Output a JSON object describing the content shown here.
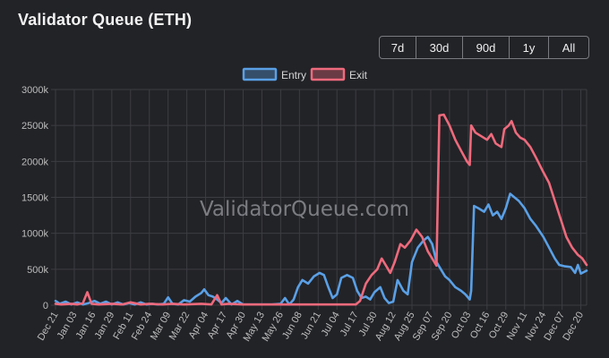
{
  "title": "Validator Queue (ETH)",
  "range_buttons": [
    "7d",
    "30d",
    "90d",
    "1y",
    "All"
  ],
  "watermark": "ValidatorQueue.com",
  "colors": {
    "entry": "#5aa0e6",
    "exit": "#ee6a7c",
    "grid": "#3c3d42",
    "tick_text": "#bdbdbd"
  },
  "chart_data": {
    "type": "line",
    "title": "",
    "xlabel": "",
    "ylabel": "",
    "legend_position": "top",
    "grid": true,
    "ylim": [
      0,
      3000000
    ],
    "y_ticks": [
      0,
      500000,
      1000000,
      1500000,
      2000000,
      2500000,
      3000000
    ],
    "y_tick_labels": [
      "0",
      "500k",
      "1000k",
      "1500k",
      "2000k",
      "2500k",
      "3000k"
    ],
    "x_tick_labels": [
      "Dec 21",
      "Jan 03",
      "Jan 16",
      "Jan 29",
      "Feb 11",
      "Feb 24",
      "Mar 09",
      "Mar 22",
      "Apr 04",
      "Apr 17",
      "Apr 30",
      "May 13",
      "May 26",
      "Jun 08",
      "Jun 21",
      "Jul 04",
      "Jul 17",
      "Jul 30",
      "Aug 12",
      "Aug 25",
      "Sep 07",
      "Sep 20",
      "Oct 03",
      "Oct 16",
      "Oct 29",
      "Nov 11",
      "Nov 24",
      "Dec 07",
      "Dec 20"
    ],
    "x_start": "Dec 21",
    "x_end": "Dec 24",
    "series": [
      {
        "name": "Entry",
        "points": [
          [
            "Dec 21",
            60000
          ],
          [
            "Dec 24",
            20000
          ],
          [
            "Dec 28",
            50000
          ],
          [
            "Jan 01",
            10000
          ],
          [
            "Jan 05",
            40000
          ],
          [
            "Jan 09",
            10000
          ],
          [
            "Jan 13",
            30000
          ],
          [
            "Jan 17",
            60000
          ],
          [
            "Jan 21",
            20000
          ],
          [
            "Jan 25",
            50000
          ],
          [
            "Jan 29",
            10000
          ],
          [
            "Feb 02",
            40000
          ],
          [
            "Feb 06",
            10000
          ],
          [
            "Feb 10",
            30000
          ],
          [
            "Feb 14",
            10000
          ],
          [
            "Feb 18",
            40000
          ],
          [
            "Feb 22",
            10000
          ],
          [
            "Feb 26",
            20000
          ],
          [
            "Mar 02",
            10000
          ],
          [
            "Mar 06",
            20000
          ],
          [
            "Mar 09",
            110000
          ],
          [
            "Mar 12",
            20000
          ],
          [
            "Mar 16",
            10000
          ],
          [
            "Mar 20",
            70000
          ],
          [
            "Mar 24",
            50000
          ],
          [
            "Mar 28",
            120000
          ],
          [
            "Apr 01",
            170000
          ],
          [
            "Apr 03",
            220000
          ],
          [
            "Apr 06",
            140000
          ],
          [
            "Apr 09",
            120000
          ],
          [
            "Apr 12",
            80000
          ],
          [
            "Apr 15",
            30000
          ],
          [
            "Apr 18",
            100000
          ],
          [
            "Apr 22",
            10000
          ],
          [
            "Apr 26",
            60000
          ],
          [
            "Apr 30",
            10000
          ],
          [
            "May 05",
            10000
          ],
          [
            "May 13",
            10000
          ],
          [
            "May 20",
            10000
          ],
          [
            "May 26",
            20000
          ],
          [
            "May 29",
            100000
          ],
          [
            "Jun 01",
            10000
          ],
          [
            "Jun 04",
            80000
          ],
          [
            "Jun 07",
            250000
          ],
          [
            "Jun 10",
            350000
          ],
          [
            "Jun 14",
            300000
          ],
          [
            "Jun 18",
            400000
          ],
          [
            "Jun 22",
            450000
          ],
          [
            "Jun 25",
            420000
          ],
          [
            "Jun 28",
            250000
          ],
          [
            "Jul 01",
            100000
          ],
          [
            "Jul 04",
            150000
          ],
          [
            "Jul 07",
            380000
          ],
          [
            "Jul 11",
            420000
          ],
          [
            "Jul 15",
            380000
          ],
          [
            "Jul 18",
            200000
          ],
          [
            "Jul 21",
            100000
          ],
          [
            "Jul 24",
            120000
          ],
          [
            "Jul 27",
            80000
          ],
          [
            "Jul 30",
            180000
          ],
          [
            "Aug 03",
            250000
          ],
          [
            "Aug 06",
            100000
          ],
          [
            "Aug 09",
            30000
          ],
          [
            "Aug 12",
            50000
          ],
          [
            "Aug 15",
            350000
          ],
          [
            "Aug 19",
            200000
          ],
          [
            "Aug 22",
            150000
          ],
          [
            "Aug 25",
            600000
          ],
          [
            "Aug 29",
            800000
          ],
          [
            "Sep 02",
            900000
          ],
          [
            "Sep 05",
            950000
          ],
          [
            "Sep 08",
            850000
          ],
          [
            "Sep 11",
            600000
          ],
          [
            "Sep 14",
            500000
          ],
          [
            "Sep 17",
            400000
          ],
          [
            "Sep 20",
            350000
          ],
          [
            "Sep 24",
            250000
          ],
          [
            "Sep 28",
            200000
          ],
          [
            "Oct 01",
            150000
          ],
          [
            "Oct 04",
            80000
          ],
          [
            "Oct 05",
            200000
          ],
          [
            "Oct 07",
            1380000
          ],
          [
            "Oct 10",
            1350000
          ],
          [
            "Oct 14",
            1300000
          ],
          [
            "Oct 17",
            1400000
          ],
          [
            "Oct 20",
            1250000
          ],
          [
            "Oct 23",
            1300000
          ],
          [
            "Oct 26",
            1200000
          ],
          [
            "Oct 29",
            1350000
          ],
          [
            "Nov 01",
            1550000
          ],
          [
            "Nov 04",
            1500000
          ],
          [
            "Nov 07",
            1450000
          ],
          [
            "Nov 11",
            1350000
          ],
          [
            "Nov 15",
            1200000
          ],
          [
            "Nov 19",
            1100000
          ],
          [
            "Nov 24",
            950000
          ],
          [
            "Nov 28",
            800000
          ],
          [
            "Dec 02",
            650000
          ],
          [
            "Dec 05",
            560000
          ],
          [
            "Dec 09",
            540000
          ],
          [
            "Dec 13",
            530000
          ],
          [
            "Dec 16",
            450000
          ],
          [
            "Dec 18",
            560000
          ],
          [
            "Dec 20",
            440000
          ],
          [
            "Dec 24",
            480000
          ]
        ]
      },
      {
        "name": "Exit",
        "points": [
          [
            "Dec 21",
            20000
          ],
          [
            "Dec 25",
            10000
          ],
          [
            "Jan 01",
            20000
          ],
          [
            "Jan 05",
            10000
          ],
          [
            "Jan 09",
            30000
          ],
          [
            "Jan 12",
            180000
          ],
          [
            "Jan 15",
            20000
          ],
          [
            "Jan 20",
            10000
          ],
          [
            "Jan 29",
            20000
          ],
          [
            "Feb 05",
            10000
          ],
          [
            "Feb 11",
            40000
          ],
          [
            "Feb 18",
            10000
          ],
          [
            "Feb 24",
            20000
          ],
          [
            "Mar 05",
            10000
          ],
          [
            "Mar 12",
            20000
          ],
          [
            "Mar 20",
            10000
          ],
          [
            "Apr 01",
            20000
          ],
          [
            "Apr 08",
            10000
          ],
          [
            "Apr 12",
            140000
          ],
          [
            "Apr 15",
            10000
          ],
          [
            "Apr 20",
            20000
          ],
          [
            "Apr 30",
            10000
          ],
          [
            "May 13",
            10000
          ],
          [
            "May 26",
            10000
          ],
          [
            "Jun 08",
            10000
          ],
          [
            "Jun 21",
            10000
          ],
          [
            "Jul 04",
            10000
          ],
          [
            "Jul 17",
            10000
          ],
          [
            "Jul 20",
            60000
          ],
          [
            "Jul 24",
            300000
          ],
          [
            "Jul 28",
            420000
          ],
          [
            "Aug 01",
            500000
          ],
          [
            "Aug 04",
            650000
          ],
          [
            "Aug 07",
            550000
          ],
          [
            "Aug 10",
            450000
          ],
          [
            "Aug 13",
            600000
          ],
          [
            "Aug 17",
            850000
          ],
          [
            "Aug 20",
            800000
          ],
          [
            "Aug 24",
            900000
          ],
          [
            "Aug 28",
            1050000
          ],
          [
            "Sep 01",
            950000
          ],
          [
            "Sep 05",
            750000
          ],
          [
            "Sep 08",
            650000
          ],
          [
            "Sep 11",
            550000
          ],
          [
            "Sep 13",
            2640000
          ],
          [
            "Sep 16",
            2650000
          ],
          [
            "Sep 20",
            2500000
          ],
          [
            "Sep 24",
            2300000
          ],
          [
            "Sep 28",
            2150000
          ],
          [
            "Oct 02",
            2000000
          ],
          [
            "Oct 04",
            1950000
          ],
          [
            "Oct 05",
            2500000
          ],
          [
            "Oct 08",
            2400000
          ],
          [
            "Oct 12",
            2350000
          ],
          [
            "Oct 16",
            2300000
          ],
          [
            "Oct 19",
            2380000
          ],
          [
            "Oct 22",
            2250000
          ],
          [
            "Oct 26",
            2200000
          ],
          [
            "Oct 28",
            2450000
          ],
          [
            "Oct 31",
            2500000
          ],
          [
            "Nov 02",
            2560000
          ],
          [
            "Nov 05",
            2400000
          ],
          [
            "Nov 08",
            2330000
          ],
          [
            "Nov 11",
            2300000
          ],
          [
            "Nov 15",
            2200000
          ],
          [
            "Nov 19",
            2050000
          ],
          [
            "Nov 24",
            1850000
          ],
          [
            "Nov 28",
            1700000
          ],
          [
            "Dec 02",
            1450000
          ],
          [
            "Dec 06",
            1200000
          ],
          [
            "Dec 10",
            950000
          ],
          [
            "Dec 14",
            800000
          ],
          [
            "Dec 18",
            700000
          ],
          [
            "Dec 21",
            650000
          ],
          [
            "Dec 24",
            560000
          ]
        ]
      }
    ]
  }
}
